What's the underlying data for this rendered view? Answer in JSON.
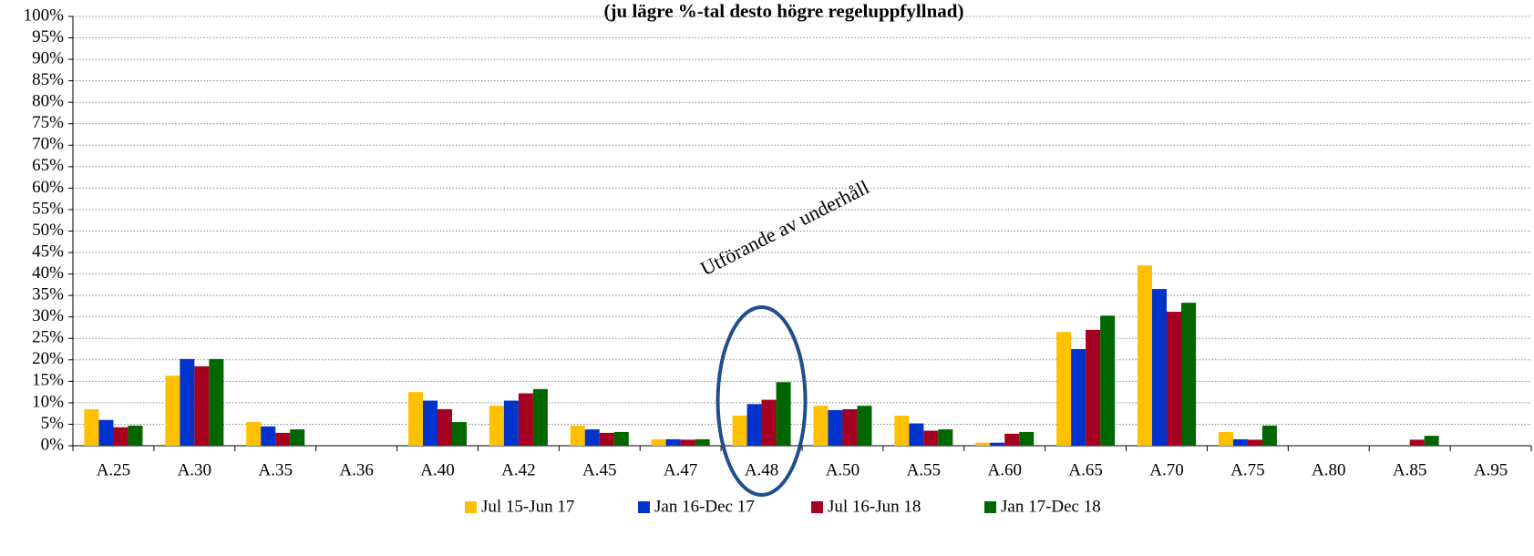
{
  "chart_data": {
    "type": "bar",
    "title": "(ju lägre %-tal desto högre regeluppfyllnad)",
    "annotation": "Utförande av underhåll",
    "categories": [
      "A.25",
      "A.30",
      "A.35",
      "A.36",
      "A.40",
      "A.42",
      "A.45",
      "A.47",
      "A.48",
      "A.50",
      "A.55",
      "A.60",
      "A.65",
      "A.70",
      "A.75",
      "A.80",
      "A.85",
      "A.95"
    ],
    "series": [
      {
        "name": "Jul 15-Jun 17",
        "color": "#FFC000",
        "values": [
          8.5,
          16.3,
          5.5,
          0,
          12.5,
          9.3,
          4.7,
          1.5,
          7,
          9.3,
          7,
          0.7,
          26.5,
          42,
          3.2,
          0,
          0,
          0
        ]
      },
      {
        "name": "Jan 16-Dec 17",
        "color": "#0033CC",
        "values": [
          6,
          20.2,
          4.5,
          0,
          10.5,
          10.5,
          3.8,
          1.5,
          9.7,
          8.3,
          5.2,
          0.7,
          22.5,
          36.5,
          1.5,
          0,
          0,
          0
        ]
      },
      {
        "name": "Jul 16-Jun 18",
        "color": "#A50021",
        "values": [
          4.3,
          18.5,
          3,
          0,
          8.5,
          12.2,
          3,
          1.4,
          10.7,
          8.5,
          3.5,
          2.8,
          27,
          31.2,
          1.4,
          0,
          1.4,
          0
        ]
      },
      {
        "name": "Jan 17-Dec 18",
        "color": "#006600",
        "values": [
          4.7,
          20.2,
          3.8,
          0,
          5.5,
          13.2,
          3.2,
          1.5,
          14.8,
          9.3,
          3.8,
          3.2,
          30.3,
          33.3,
          4.7,
          0,
          2.3,
          0
        ]
      }
    ],
    "ylim": [
      0,
      100
    ],
    "yticks": [
      {
        "value": 0,
        "label": "0%"
      },
      {
        "value": 5,
        "label": "5%"
      },
      {
        "value": 10,
        "label": "10%"
      },
      {
        "value": 15,
        "label": "15%"
      },
      {
        "value": 20,
        "label": "20%"
      },
      {
        "value": 25,
        "label": "25%"
      },
      {
        "value": 30,
        "label": "30%"
      },
      {
        "value": 35,
        "label": "35%"
      },
      {
        "value": 40,
        "label": "40%"
      },
      {
        "value": 45,
        "label": "45%"
      },
      {
        "value": 50,
        "label": "50%"
      },
      {
        "value": 55,
        "label": "55%"
      },
      {
        "value": 60,
        "label": "60%"
      },
      {
        "value": 65,
        "label": "65%"
      },
      {
        "value": 70,
        "label": "70%"
      },
      {
        "value": 75,
        "label": "75%"
      },
      {
        "value": 80,
        "label": "80%"
      },
      {
        "value": 85,
        "label": "85%"
      },
      {
        "value": 90,
        "label": "90%"
      },
      {
        "value": 95,
        "label": "95%"
      },
      {
        "value": 100,
        "label": "100%"
      }
    ],
    "grid": true,
    "legend": "bottom"
  }
}
